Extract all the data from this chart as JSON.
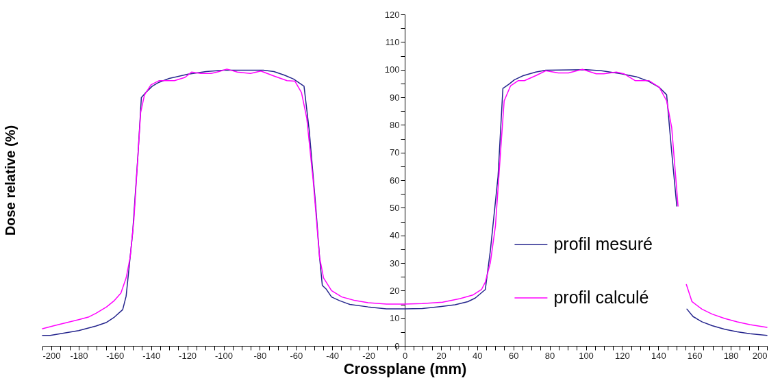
{
  "chart_data": {
    "type": "line",
    "xlabel": "Crossplane (mm)",
    "ylabel": "Dose relative (%)",
    "xlim": [
      -200,
      200
    ],
    "xticks": [
      -200,
      {
        "value": -195,
        "label": null
      },
      {
        "value": -190,
        "label": null
      },
      {
        "value": -185,
        "label": null
      },
      -180,
      {
        "value": -175,
        "label": null
      },
      {
        "value": -170,
        "label": null
      },
      {
        "value": -165,
        "label": null
      },
      -160,
      {
        "value": -155,
        "label": null
      },
      {
        "value": -150,
        "label": null
      },
      {
        "value": -145,
        "label": null
      },
      -140,
      {
        "value": -135,
        "label": null
      },
      {
        "value": -130,
        "label": null
      },
      {
        "value": -125,
        "label": null
      },
      -120,
      {
        "value": -115,
        "label": null
      },
      {
        "value": -110,
        "label": null
      },
      {
        "value": -105,
        "label": null
      },
      -100,
      {
        "value": -95,
        "label": null
      },
      {
        "value": -90,
        "label": null
      },
      {
        "value": -85,
        "label": null
      },
      -80,
      {
        "value": -75,
        "label": null
      },
      {
        "value": -70,
        "label": null
      },
      {
        "value": -65,
        "label": null
      },
      -60,
      {
        "value": -55,
        "label": null
      },
      {
        "value": -50,
        "label": null
      },
      {
        "value": -45,
        "label": null
      },
      -40,
      {
        "value": -35,
        "label": null
      },
      {
        "value": -30,
        "label": null
      },
      {
        "value": -25,
        "label": null
      },
      -20,
      {
        "value": -15,
        "label": null
      },
      {
        "value": -10,
        "label": null
      },
      {
        "value": -5,
        "label": null
      },
      0,
      {
        "value": 5,
        "label": null
      },
      {
        "value": 10,
        "label": null
      },
      {
        "value": 15,
        "label": null
      },
      20,
      {
        "value": 25,
        "label": null
      },
      {
        "value": 30,
        "label": null
      },
      {
        "value": 35,
        "label": null
      },
      40,
      {
        "value": 45,
        "label": null
      },
      {
        "value": 50,
        "label": null
      },
      {
        "value": 55,
        "label": null
      },
      60,
      {
        "value": 65,
        "label": null
      },
      {
        "value": 70,
        "label": null
      },
      {
        "value": 75,
        "label": null
      },
      80,
      {
        "value": 85,
        "label": null
      },
      {
        "value": 90,
        "label": null
      },
      {
        "value": 95,
        "label": null
      },
      100,
      {
        "value": 105,
        "label": null
      },
      {
        "value": 110,
        "label": null
      },
      {
        "value": 115,
        "label": null
      },
      120,
      {
        "value": 125,
        "label": null
      },
      {
        "value": 130,
        "label": null
      },
      {
        "value": 135,
        "label": null
      },
      140,
      {
        "value": 145,
        "label": null
      },
      {
        "value": 150,
        "label": null
      },
      {
        "value": 155,
        "label": null
      },
      160,
      {
        "value": 165,
        "label": null
      },
      {
        "value": 170,
        "label": null
      },
      {
        "value": 175,
        "label": null
      },
      180,
      {
        "value": 185,
        "label": null
      },
      {
        "value": 190,
        "label": null
      },
      {
        "value": 195,
        "label": null
      },
      200
    ],
    "ylim": [
      0,
      120
    ],
    "yticks": [
      0,
      {
        "value": 5,
        "label": null
      },
      10,
      {
        "value": 15,
        "label": null
      },
      20,
      {
        "value": 25,
        "label": null
      },
      30,
      {
        "value": 35,
        "label": null
      },
      40,
      {
        "value": 45,
        "label": null
      },
      50,
      {
        "value": 55,
        "label": null
      },
      60,
      {
        "value": 65,
        "label": null
      },
      70,
      {
        "value": 75,
        "label": null
      },
      80,
      {
        "value": 85,
        "label": null
      },
      90,
      {
        "value": 95,
        "label": null
      },
      100,
      {
        "value": 105,
        "label": null
      },
      110,
      {
        "value": 115,
        "label": null
      },
      120
    ],
    "legend": "bottom right",
    "marker": "none",
    "line_style": "solid",
    "series": [
      {
        "name": "profil mesuré",
        "color": "#23238c",
        "x": [
          -200,
          -195.7,
          -180,
          -170.4,
          -164.6,
          -160.3,
          -155.7,
          -153.8,
          -150.2,
          -147.3,
          -145.4,
          -143,
          -139.4,
          -135.7,
          -130,
          -120,
          -109.7,
          -100,
          -78,
          -72.2,
          -66.4,
          -61.4,
          -55.6,
          -52.7,
          -49.1,
          -47,
          -45.5,
          -43.3,
          -40.4,
          -36.1,
          -30.3,
          -20.2,
          -10.1,
          0,
          9.7,
          19.5,
          27.8,
          34.8,
          38.9,
          44.5,
          47.3,
          51.5,
          54.2,
          57.7,
          60.5,
          65.4,
          72.3,
          77.9,
          100.1,
          108.5,
          119.6,
          128,
          134.9,
          140.5,
          144.6,
          147.4,
          150.2,
          153,
          155.8,
          159.2,
          164.1,
          169.7,
          176.6,
          183.6,
          190.5,
          200
        ],
        "values": [
          3.8,
          3.8,
          5.5,
          7.2,
          8.5,
          10.4,
          13.1,
          18,
          41,
          68.8,
          89.9,
          91.7,
          94,
          95.4,
          96.8,
          98.3,
          99.3,
          99.8,
          99.8,
          99.3,
          98,
          96.6,
          94,
          77.9,
          50.3,
          32,
          21.9,
          20.5,
          17.7,
          16.4,
          15,
          14.1,
          13.4,
          13.4,
          13.5,
          14.2,
          14.9,
          16,
          17.3,
          20.4,
          34.6,
          61.2,
          93.2,
          94.8,
          96.3,
          97.8,
          99.1,
          99.8,
          100,
          99.6,
          98.5,
          97.4,
          95.7,
          93.6,
          90.9,
          70.1,
          50.6,
          null,
          13.3,
          10.6,
          8.7,
          7.3,
          6,
          5.1,
          4.4,
          3.8
        ]
      },
      {
        "name": "profil calculé",
        "color": "#ff00ff",
        "x": [
          -200,
          -193.5,
          -180,
          -174.7,
          -170.4,
          -164.6,
          -160.3,
          -156.7,
          -153.8,
          -151.6,
          -149.5,
          -147.3,
          -145.8,
          -143.7,
          -140.1,
          -135.7,
          -127.1,
          -121.3,
          -117.7,
          -112.6,
          -106.9,
          -102.5,
          -98.2,
          -92.4,
          -85.2,
          -79.4,
          -72.2,
          -65,
          -60.6,
          -57,
          -54.1,
          -50.5,
          -47,
          -44.8,
          -40.4,
          -34.7,
          -27.4,
          -20.2,
          -10.1,
          0,
          9.7,
          20.9,
          30.6,
          37.6,
          42.4,
          44.5,
          47.3,
          50.1,
          52.9,
          54.9,
          58.4,
          62.6,
          66.1,
          72.3,
          77.9,
          84.8,
          90.4,
          98.1,
          105.7,
          109.9,
          116.8,
          121,
          127.3,
          134.9,
          140.5,
          144.6,
          147.4,
          150.9,
          153,
          155.5,
          158.6,
          164.1,
          169.7,
          176.6,
          183.6,
          190.5,
          200
        ],
        "values": [
          6.2,
          7.3,
          9.5,
          10.4,
          11.8,
          14.1,
          16.4,
          19.1,
          24.6,
          32,
          45.8,
          68.8,
          84.4,
          90.8,
          94.5,
          96,
          96,
          97.2,
          99.1,
          98.6,
          98.6,
          99.3,
          100.2,
          99.1,
          98.6,
          99.5,
          97.7,
          96,
          95.8,
          91.7,
          82.5,
          59.6,
          32,
          24.6,
          20,
          17.7,
          16.4,
          15.6,
          15.1,
          15.1,
          15.3,
          15.8,
          17.1,
          18.4,
          20.4,
          23.1,
          30.2,
          43.5,
          70.1,
          88.7,
          94.1,
          96,
          96,
          97.8,
          99.6,
          98.8,
          98.8,
          100.1,
          98.5,
          98.5,
          99.1,
          98.5,
          96,
          96,
          93.6,
          88.7,
          79,
          50.6,
          null,
          22.2,
          16,
          13.3,
          11.5,
          9.9,
          8.7,
          7.7,
          6.7
        ]
      }
    ]
  }
}
